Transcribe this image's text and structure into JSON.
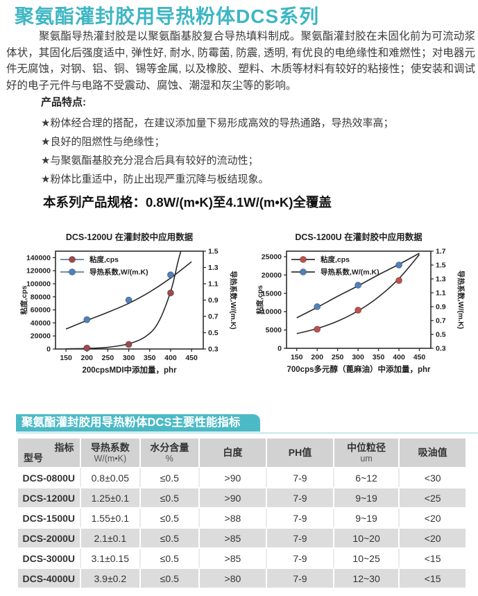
{
  "header": {
    "title": "聚氨酯灌封胶用导热粉体DCS系列",
    "title_color": "#3db6c3"
  },
  "intro": {
    "text": "聚氨酯导热灌封胶是以聚氨酯基胶复合导热填料制成。聚氨酯灌封胶在未固化前为可流动浆体状，其固化后强度适中, 弹性好, 耐水, 防霉菌, 防震, 透明, 有优良的电绝缘性和难燃性；对电器元件无腐蚀，对钢、铝、铜、锡等金属, 以及橡胶、塑料、木质等材料有较好的粘接性；使安装和调试好的电子元件与电路不受震动、腐蚀、潮湿和灰尘等的影响。"
  },
  "features": {
    "heading": "产品特点:",
    "items": [
      "★粉体经合理的搭配，在建议添加量下易形成高效的导热通路，导热效率高；",
      "★良好的阻燃性与绝缘性；",
      "★与聚氨酯基胶充分混合后具有较好的流动性；",
      "★粉体比重适中，防止出现严重沉降与板结现象。"
    ]
  },
  "spec_line": "本系列产品规格：0.8W/(m•K)至4.1W/(m•K)全覆盖",
  "chart_data": [
    {
      "type": "line",
      "title": "DCS-1200U 在灌封胶中应用数据",
      "xlabel": "200cpsMDI中添加量，phr",
      "ylabel_left": "粘度,cps",
      "ylabel_right": "导热系数,W/(m.K)",
      "x_ticks": [
        150,
        200,
        250,
        300,
        350,
        400,
        450
      ],
      "x_range": [
        125,
        478
      ],
      "left_ticks": [
        0,
        20000,
        40000,
        60000,
        80000,
        100000,
        120000,
        140000
      ],
      "left_range": [
        0,
        150000
      ],
      "right_ticks": [
        0.3,
        0.5,
        0.7,
        0.9,
        1.1,
        1.3,
        1.5
      ],
      "right_range": [
        0.3,
        1.5
      ],
      "legend_line_color": "#5f7d9e",
      "grid": false,
      "legend_position": "top-left-inside",
      "series": [
        {
          "name": "粘度,cps",
          "axis": "left",
          "color": "#9e4a4e",
          "points": [
            [
              200,
              1500
            ],
            [
              300,
              7000
            ],
            [
              400,
              86000
            ]
          ],
          "trend": [
            [
              150,
              300
            ],
            [
              200,
              900
            ],
            [
              250,
              2600
            ],
            [
              300,
              8000
            ],
            [
              340,
              19000
            ],
            [
              370,
              40000
            ],
            [
              400,
              88000
            ],
            [
              418,
              135000
            ],
            [
              427,
              155000
            ]
          ]
        },
        {
          "name": "导热系数,W/(m.K)",
          "axis": "right",
          "color": "#4f81bd",
          "points": [
            [
              200,
              0.66
            ],
            [
              300,
              0.9
            ],
            [
              400,
              1.21
            ]
          ],
          "trend": [
            [
              150,
              0.545
            ],
            [
              200,
              0.65
            ],
            [
              250,
              0.75
            ],
            [
              300,
              0.86
            ],
            [
              350,
              1.0
            ],
            [
              400,
              1.17
            ],
            [
              450,
              1.37
            ]
          ]
        }
      ]
    },
    {
      "type": "line",
      "title": "DCS-1200U 在灌封胶中应用数据",
      "xlabel": "700cps多元醇（蓖麻油）中添加量，phr",
      "ylabel_left": "粘度,cps",
      "ylabel_right": "导热系数,W/(m.K)",
      "x_ticks": [
        150,
        200,
        250,
        300,
        350,
        400,
        450
      ],
      "x_range": [
        125,
        478
      ],
      "left_ticks": [
        0,
        5000,
        10000,
        15000,
        20000,
        25000
      ],
      "left_range": [
        0,
        26500
      ],
      "right_ticks": [
        0.3,
        0.5,
        0.7,
        0.9,
        1.1,
        1.3,
        1.5,
        1.7
      ],
      "right_range": [
        0.3,
        1.7
      ],
      "legend_line_color": "#333333",
      "grid": false,
      "legend_position": "top-left-inside",
      "series": [
        {
          "name": "粘度,cps",
          "axis": "left",
          "color": "#c0504d",
          "points": [
            [
              200,
              5200
            ],
            [
              300,
              10400
            ],
            [
              400,
              18500
            ]
          ],
          "trend": [
            [
              150,
              4000
            ],
            [
              200,
              5400
            ],
            [
              250,
              7400
            ],
            [
              300,
              10200
            ],
            [
              350,
              14000
            ],
            [
              400,
              19000
            ],
            [
              450,
              25600
            ]
          ]
        },
        {
          "name": "导热系数,W/(m.K)",
          "axis": "right",
          "color": "#4f81bd",
          "points": [
            [
              200,
              0.9
            ],
            [
              300,
              1.21
            ],
            [
              400,
              1.5
            ]
          ],
          "trend": [
            [
              150,
              0.74
            ],
            [
              200,
              0.89
            ],
            [
              250,
              1.05
            ],
            [
              300,
              1.2
            ],
            [
              350,
              1.36
            ],
            [
              400,
              1.51
            ],
            [
              450,
              1.67
            ]
          ]
        }
      ]
    }
  ],
  "table": {
    "banner": "聚氨酯灌封胶用导热粉体DCS主要性能指标",
    "banner_color": "#4bbac6",
    "corner": {
      "top_label": "指标",
      "bottom_label": "型号"
    },
    "columns": [
      {
        "label": "导热系数",
        "unit": "W/(m•K)"
      },
      {
        "label": "水分含量",
        "unit": "%"
      },
      {
        "label": "白度",
        "unit": ""
      },
      {
        "label": "PH值",
        "unit": ""
      },
      {
        "label": "中位粒径",
        "unit": "um"
      },
      {
        "label": "吸油值",
        "unit": ""
      }
    ],
    "rows": [
      [
        "DCS-0800U",
        "0.8±0.05",
        "≤0.5",
        ">90",
        "7-9",
        "6~12",
        "<30"
      ],
      [
        "DCS-1200U",
        "1.25±0.1",
        "≤0.5",
        ">90",
        "7-9",
        "9~19",
        "<25"
      ],
      [
        "DCS-1500U",
        "1.55±0.1",
        "≤0.5",
        ">88",
        "7-9",
        "9~19",
        "<20"
      ],
      [
        "DCS-2000U",
        "2.1±0.1",
        "≤0.5",
        ">85",
        "7-9",
        "10~20",
        "<20"
      ],
      [
        "DCS-3000U",
        "3.1±0.15",
        "≤0.5",
        ">85",
        "7-9",
        "10~25",
        "<15"
      ],
      [
        "DCS-4000U",
        "3.9±0.2",
        "≤0.5",
        ">80",
        "7-9",
        "12~30",
        "<15"
      ]
    ]
  }
}
